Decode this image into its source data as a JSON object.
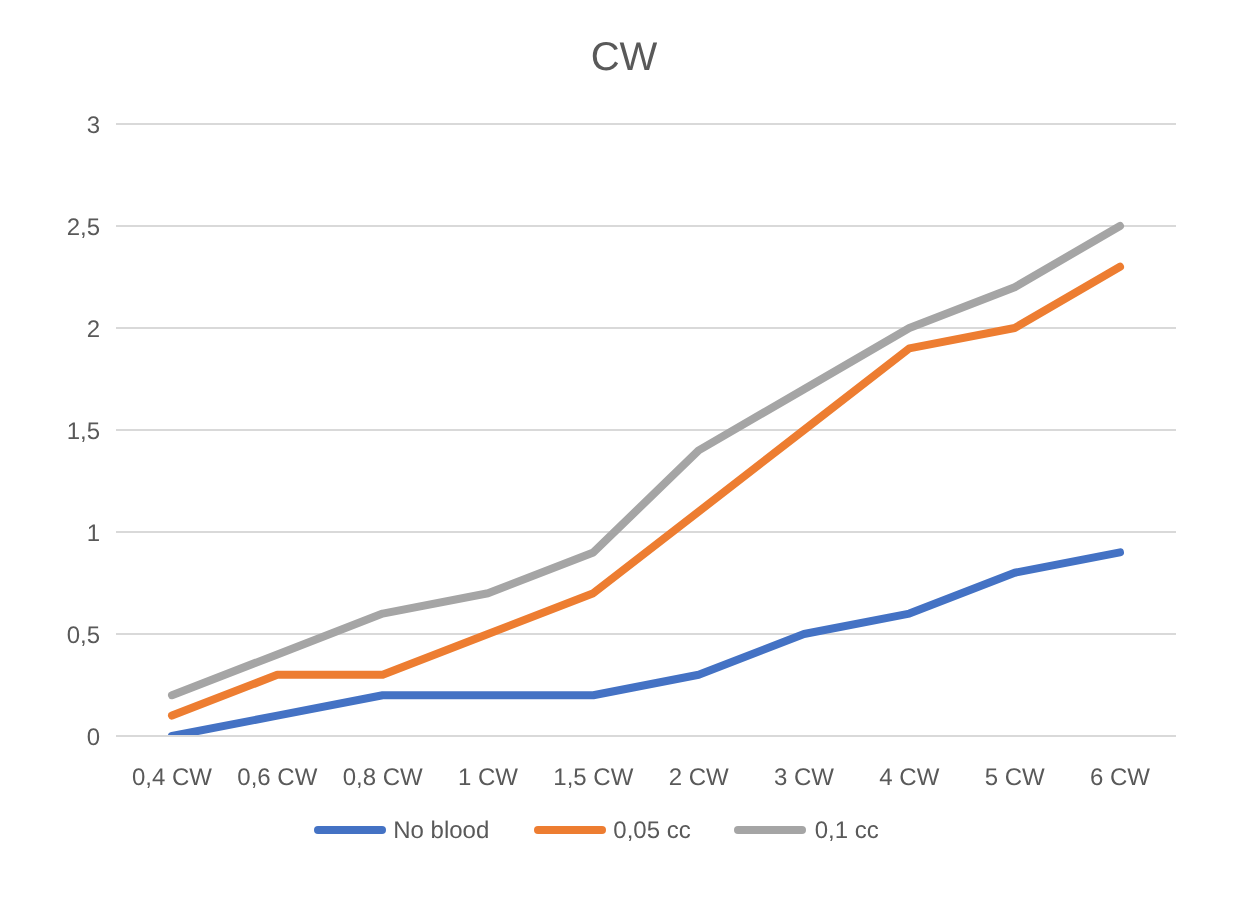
{
  "chart_data": {
    "type": "line",
    "title": "CW",
    "categories": [
      "0,4 CW",
      "0,6 CW",
      "0,8 CW",
      "1 CW",
      "1,5 CW",
      "2 CW",
      "3 CW",
      "4 CW",
      "5 CW",
      "6 CW"
    ],
    "series": [
      {
        "name": "No blood",
        "color": "#4472c4",
        "values": [
          0,
          0.1,
          0.2,
          0.2,
          0.2,
          0.3,
          0.5,
          0.6,
          0.8,
          0.9
        ]
      },
      {
        "name": "0,05 cc",
        "color": "#ed7d31",
        "values": [
          0.1,
          0.3,
          0.3,
          0.5,
          0.7,
          1.1,
          1.5,
          1.9,
          2.0,
          2.3
        ]
      },
      {
        "name": "0,1 cc",
        "color": "#a5a5a5",
        "values": [
          0.2,
          0.4,
          0.6,
          0.7,
          0.9,
          1.4,
          1.7,
          2.0,
          2.2,
          2.5
        ]
      }
    ],
    "ylim": [
      0,
      3
    ],
    "yticks": [
      0,
      {
        "value": 0.5,
        "label": "0,5"
      },
      1,
      {
        "value": 1.5,
        "label": "1,5"
      },
      2,
      {
        "value": 2.5,
        "label": "2,5"
      },
      3
    ],
    "grid": "y",
    "legend": "bottom",
    "marker": "none",
    "line_style": "solid"
  }
}
